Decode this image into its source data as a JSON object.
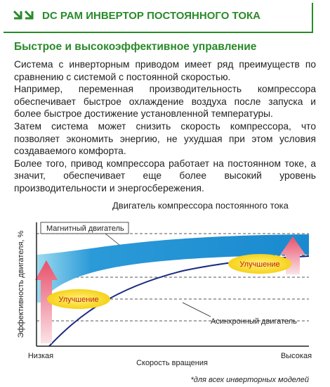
{
  "header": {
    "title": "DC PAM ИНВЕРТОР ПОСТОЯННОГО ТОКА"
  },
  "section": {
    "title": "Быстрое и высокоэффективное управление",
    "paragraphs": [
      "Система с инверторным приводом имеет ряд преимуществ по сравнению с системой с постоянной скоростью.",
      "Например, переменная производительность компрессора обеспечивает быстрое охлаждение воздуха после запуска и более быстрое достижение установленной температуры.",
      "Затем система может снизить скорость компрессора, что позволяет экономить энергию, не ухудшая при этом условия создаваемого комфорта.",
      "Более того, привод компрессора работает на постоянном токе, а значит, обеспечивает еще более высокий уровень производительности и энергосбережения."
    ]
  },
  "diagram": {
    "title": "Двигатель компрессора постоянного тока",
    "y_axis_label": "Эффективность двигателя, %",
    "x_axis_label": "Скорость вращения",
    "x_low": "Низкая",
    "x_high": "Высокая",
    "magnet_label": "Магнитный двигатель",
    "async_label": "Асинхронный двигатель",
    "improvement_labels": [
      "Улучшение",
      "Улучшение"
    ]
  },
  "footnote": "*для всех инверторных моделей"
}
